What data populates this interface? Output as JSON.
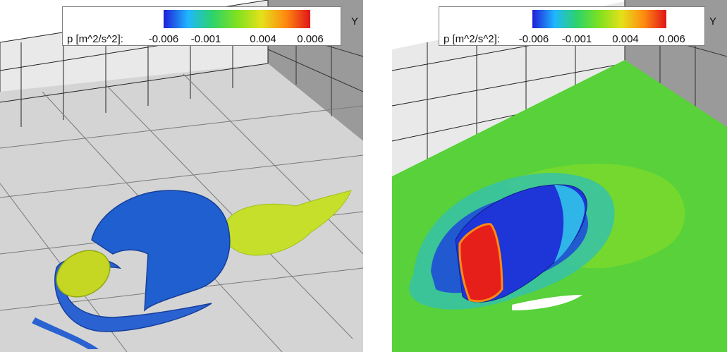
{
  "colorbar": {
    "variable": "p [m^2/s^2]:",
    "ticks": [
      "-0.006",
      "-0.001",
      "0.004",
      "0.006"
    ],
    "colors": [
      "#1f1fd8",
      "#1fb7ff",
      "#2cd36a",
      "#7fe11f",
      "#e4e11a",
      "#ff8a10",
      "#e0141a"
    ]
  },
  "left_panel": {
    "axis_label": "Y"
  },
  "right_panel": {
    "axis_label": "Y"
  }
}
